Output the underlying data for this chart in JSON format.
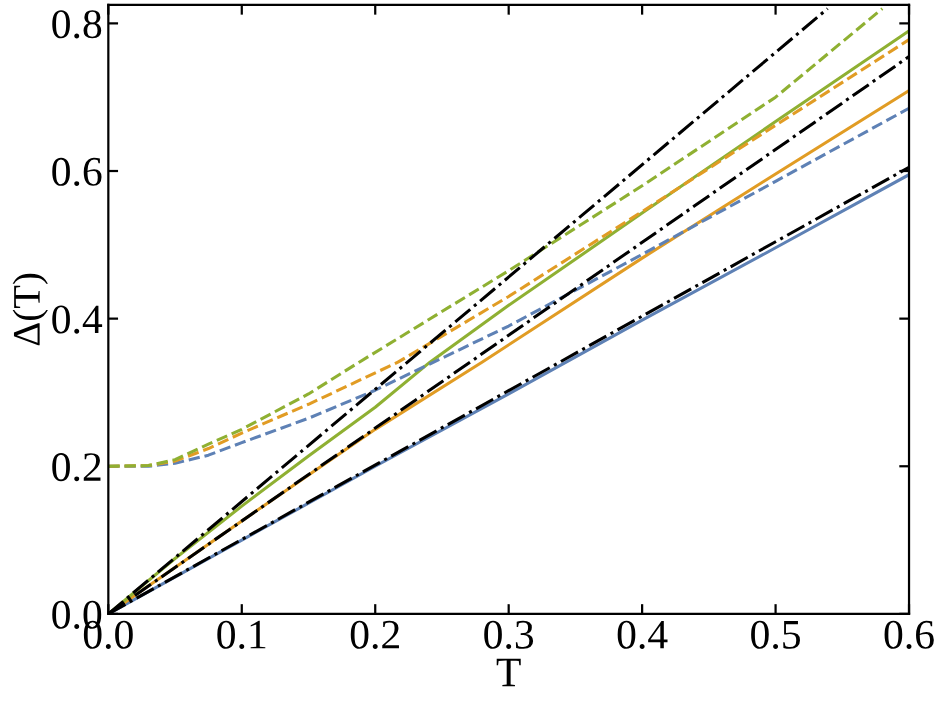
{
  "chart_data": {
    "type": "line",
    "xlabel": "T",
    "ylabel": "Δ(T)",
    "xlim": [
      0,
      0.6
    ],
    "ylim": [
      0,
      0.825
    ],
    "xticks": [
      {
        "value": 0,
        "label": "0.0"
      },
      0.1,
      0.2,
      0.3,
      0.4,
      0.5,
      0.6
    ],
    "yticks": [
      {
        "value": 0,
        "label": "0.0"
      },
      0.2,
      0.4,
      0.6,
      0.8
    ],
    "grid": false,
    "legend": false,
    "marker": "none",
    "series": [
      {
        "color": "#5e81b5",
        "line_style": "solid",
        "x": [
          0,
          0.1,
          0.2,
          0.3,
          0.4,
          0.5,
          0.6
        ],
        "values": [
          0,
          0.1,
          0.2,
          0.298,
          0.398,
          0.496,
          0.595
        ]
      },
      {
        "color": "#e19c24",
        "line_style": "solid",
        "x": [
          0,
          0.1,
          0.2,
          0.28,
          0.4,
          0.5,
          0.6
        ],
        "values": [
          0,
          0.126,
          0.25,
          0.341,
          0.482,
          0.596,
          0.709
        ]
      },
      {
        "color": "#8fb032",
        "line_style": "solid",
        "x": [
          0,
          0.05,
          0.1,
          0.15,
          0.2,
          0.241,
          0.3,
          0.4,
          0.5,
          0.6
        ],
        "values": [
          0,
          0.075,
          0.146,
          0.214,
          0.28,
          0.341,
          0.418,
          0.543,
          0.667,
          0.79
        ]
      },
      {
        "color": "#5e81b5",
        "line_style": "dashed",
        "x": [
          0,
          0.03,
          0.05,
          0.075,
          0.1,
          0.15,
          0.2,
          0.3,
          0.4,
          0.5,
          0.6
        ],
        "values": [
          0.2,
          0.2,
          0.204,
          0.215,
          0.232,
          0.265,
          0.303,
          0.39,
          0.487,
          0.586,
          0.685
        ]
      },
      {
        "color": "#e19c24",
        "line_style": "dashed",
        "x": [
          0,
          0.03,
          0.05,
          0.075,
          0.1,
          0.15,
          0.217,
          0.3,
          0.4,
          0.5,
          0.6
        ],
        "values": [
          0.2,
          0.201,
          0.207,
          0.224,
          0.245,
          0.284,
          0.341,
          0.43,
          0.545,
          0.662,
          0.778
        ]
      },
      {
        "color": "#8fb032",
        "line_style": "dashed",
        "x": [
          0,
          0.03,
          0.05,
          0.075,
          0.1,
          0.15,
          0.188,
          0.3,
          0.4,
          0.5,
          0.58
        ],
        "values": [
          0.2,
          0.201,
          0.209,
          0.23,
          0.25,
          0.298,
          0.341,
          0.465,
          0.58,
          0.7,
          0.82
        ]
      },
      {
        "color": "#000000",
        "line_style": "dashdot",
        "x": [
          0,
          0.6
        ],
        "values": [
          0,
          0.605
        ]
      },
      {
        "color": "#000000",
        "line_style": "dashdot",
        "x": [
          0,
          0.6
        ],
        "values": [
          0,
          0.755
        ]
      },
      {
        "color": "#000000",
        "line_style": "dashdot",
        "x": [
          0,
          0.539
        ],
        "values": [
          0,
          0.82
        ]
      }
    ]
  }
}
